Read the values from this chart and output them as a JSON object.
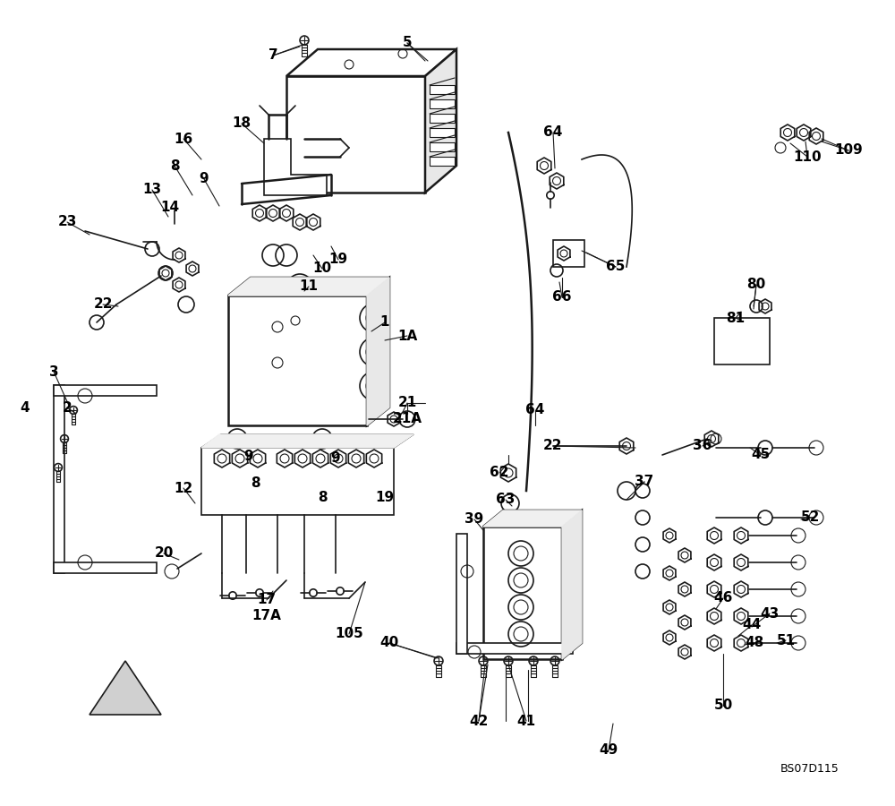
{
  "bg_color": "#ffffff",
  "line_color": "#1a1a1a",
  "text_color": "#000000",
  "watermark": "BS07D115",
  "figsize": [
    10,
    9
  ],
  "dpi": 100,
  "labels": [
    [
      "1",
      430,
      360
    ],
    [
      "1A",
      455,
      375
    ],
    [
      "2",
      75,
      455
    ],
    [
      "3",
      60,
      415
    ],
    [
      "4",
      28,
      455
    ],
    [
      "5",
      455,
      48
    ],
    [
      "7",
      305,
      62
    ],
    [
      "8",
      195,
      185
    ],
    [
      "8",
      285,
      540
    ],
    [
      "8",
      360,
      555
    ],
    [
      "9",
      228,
      200
    ],
    [
      "9",
      278,
      510
    ],
    [
      "9",
      375,
      512
    ],
    [
      "10",
      360,
      300
    ],
    [
      "11",
      345,
      320
    ],
    [
      "12",
      205,
      545
    ],
    [
      "13",
      170,
      212
    ],
    [
      "14",
      190,
      232
    ],
    [
      "16",
      205,
      155
    ],
    [
      "17",
      298,
      670
    ],
    [
      "17A",
      298,
      688
    ],
    [
      "18",
      270,
      138
    ],
    [
      "19",
      378,
      290
    ],
    [
      "19",
      430,
      555
    ],
    [
      "20",
      183,
      618
    ],
    [
      "21",
      455,
      450
    ],
    [
      "21A",
      455,
      468
    ],
    [
      "22",
      115,
      340
    ],
    [
      "22",
      618,
      498
    ],
    [
      "23",
      75,
      248
    ],
    [
      "36",
      785,
      498
    ],
    [
      "37",
      720,
      538
    ],
    [
      "39",
      530,
      580
    ],
    [
      "40",
      435,
      718
    ],
    [
      "41",
      588,
      805
    ],
    [
      "42",
      535,
      805
    ],
    [
      "43",
      860,
      685
    ],
    [
      "44",
      840,
      698
    ],
    [
      "45",
      850,
      508
    ],
    [
      "46",
      808,
      668
    ],
    [
      "48",
      843,
      718
    ],
    [
      "49",
      680,
      838
    ],
    [
      "50",
      808,
      788
    ],
    [
      "51",
      878,
      715
    ],
    [
      "52",
      905,
      578
    ],
    [
      "62",
      558,
      528
    ],
    [
      "63",
      565,
      558
    ],
    [
      "64",
      618,
      148
    ],
    [
      "64",
      598,
      458
    ],
    [
      "65",
      688,
      298
    ],
    [
      "66",
      628,
      332
    ],
    [
      "80",
      845,
      318
    ],
    [
      "81",
      822,
      355
    ],
    [
      "105",
      390,
      708
    ],
    [
      "109",
      948,
      168
    ],
    [
      "110",
      902,
      175
    ]
  ]
}
